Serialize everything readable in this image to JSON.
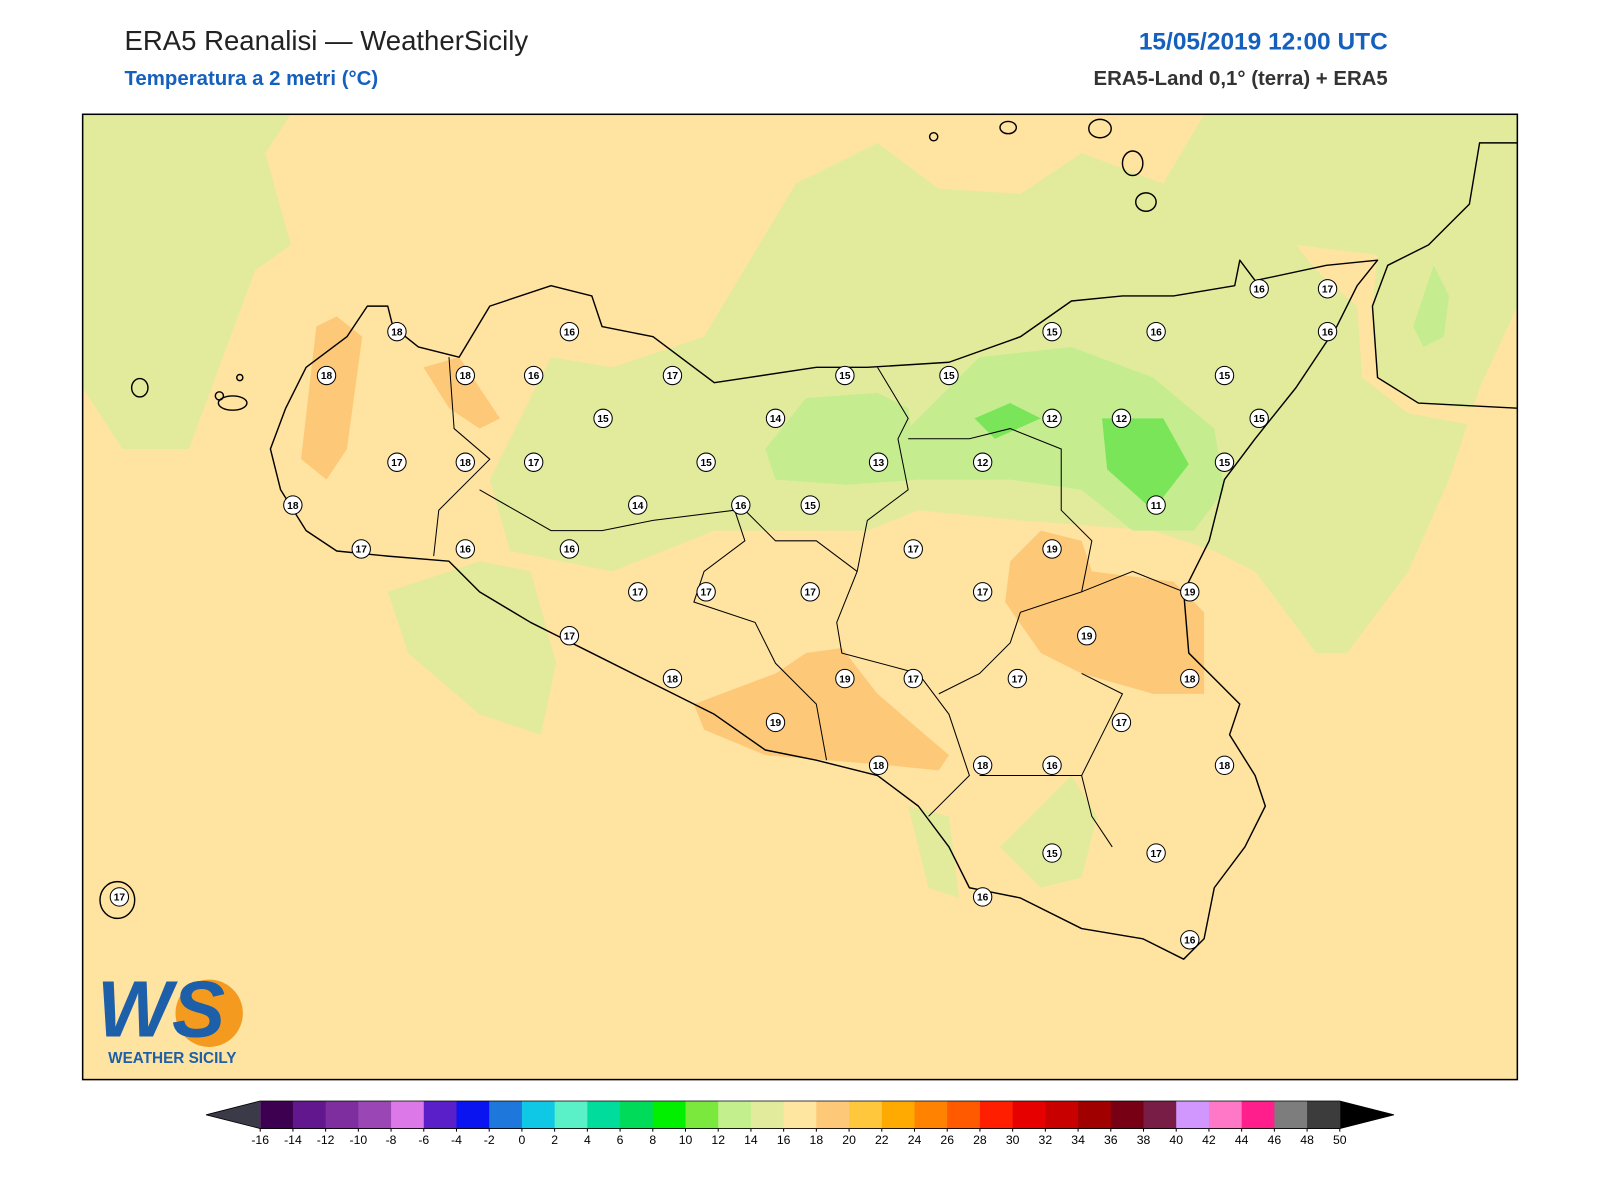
{
  "header": {
    "title": "ERA5 Reanalisi — WeatherSicily",
    "subtitle": "Temperatura a 2 metri (°C)",
    "datetime": "15/05/2019 12:00 UTC",
    "source": "ERA5-Land 0,1° (terra) + ERA5"
  },
  "stations": [
    18,
    16,
    18,
    18,
    16,
    17,
    15,
    15,
    15,
    16,
    16,
    17,
    16,
    15,
    15,
    14,
    12,
    12,
    15,
    17,
    18,
    17,
    15,
    13,
    12,
    15,
    18,
    14,
    16,
    15,
    11,
    17,
    16,
    16,
    17,
    19,
    17,
    17,
    17,
    17,
    19,
    17,
    19,
    18,
    19,
    17,
    17,
    18,
    19,
    17,
    18,
    18,
    16,
    18,
    15,
    17,
    17,
    16,
    16
  ],
  "colorbar": {
    "ticks": [
      -16,
      -14,
      -12,
      -10,
      -8,
      -6,
      -4,
      -2,
      0,
      2,
      4,
      6,
      8,
      10,
      12,
      14,
      16,
      18,
      20,
      22,
      24,
      26,
      28,
      30,
      32,
      34,
      36,
      38,
      40,
      42,
      44,
      46,
      48,
      50
    ],
    "colors": [
      "#3d0050",
      "#62178f",
      "#7f2e9f",
      "#9b46b5",
      "#dc78e8",
      "#5a1fc8",
      "#0a14f0",
      "#1e78dc",
      "#0fc8e6",
      "#5af0c8",
      "#00dc9b",
      "#00dc5a",
      "#00f000",
      "#7ae83c",
      "#c3f08c",
      "#e1eb9b",
      "#ffe6a0",
      "#fdc878",
      "#ffc83c",
      "#ffaa00",
      "#ff8200",
      "#ff5a00",
      "#ff1e00",
      "#e60000",
      "#c80000",
      "#a00000",
      "#780014",
      "#781e46",
      "#d296ff",
      "#ff78c8",
      "#ff1e8c",
      "#7d7d7d",
      "#3c3c3c"
    ],
    "under_color": "#3a3a48",
    "over_color": "#000000"
  },
  "logo": {
    "mark": "WS",
    "name": "WEATHER SICILY"
  }
}
